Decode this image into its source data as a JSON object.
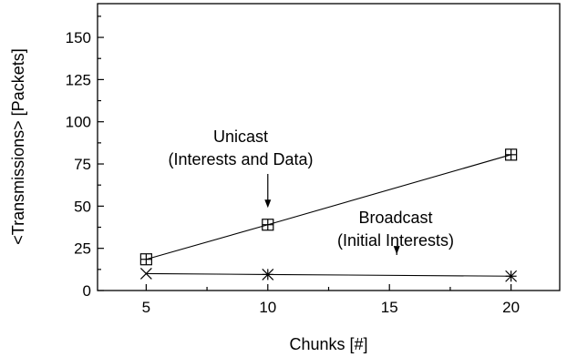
{
  "chart_data": {
    "type": "line",
    "xlabel": "Chunks [#]",
    "ylabel": "<Transmissions> [Packets]",
    "xlim": [
      3,
      22
    ],
    "ylim": [
      0,
      170
    ],
    "xticks": [
      5,
      10,
      15,
      20
    ],
    "yticks": [
      0,
      25,
      50,
      75,
      100,
      125,
      150
    ],
    "grid": false,
    "series": [
      {
        "name": "Unicast (Interests and Data)",
        "marker": "boxed-plus",
        "x": [
          5,
          10,
          20
        ],
        "y": [
          18.5,
          39,
          80.5
        ]
      },
      {
        "name": "Broadcast (Initial Interests)",
        "marker": "cross-star",
        "x": [
          5,
          10,
          20
        ],
        "y": [
          10,
          9.5,
          8.5
        ]
      }
    ],
    "annotations": [
      {
        "lines": [
          "Unicast",
          "(Interests and Data)"
        ],
        "arrow_to": {
          "x": 10,
          "y": 49
        }
      },
      {
        "lines": [
          "Broadcast",
          "(Initial Interests)"
        ],
        "arrow_to": {
          "x": 15.3,
          "y": 21.5
        }
      }
    ]
  }
}
